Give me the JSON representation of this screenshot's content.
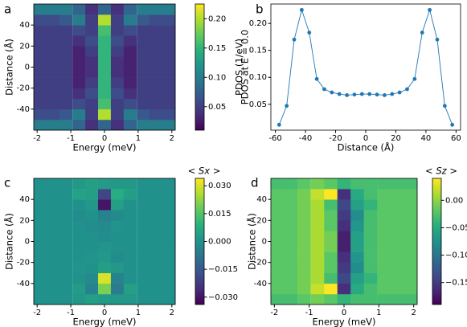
{
  "chart_data": [
    {
      "type": "heatmap",
      "panel": "a",
      "xlabel": "Energy (meV)",
      "ylabel": "Distance (Å)",
      "x": [
        -1.91,
        -1.53,
        -1.15,
        -0.76,
        -0.38,
        0,
        0.38,
        0.76,
        1.15,
        1.53,
        1.91
      ],
      "y": [
        -55,
        -45,
        -35,
        -25,
        -15,
        -5,
        5,
        15,
        25,
        35,
        45,
        55
      ],
      "z": [
        [
          0.1,
          0.1,
          0.1,
          0.08,
          0.04,
          0.08,
          0.04,
          0.08,
          0.1,
          0.1,
          0.1
        ],
        [
          0.06,
          0.06,
          0.07,
          0.1,
          0.05,
          0.2,
          0.05,
          0.1,
          0.07,
          0.06,
          0.06
        ],
        [
          0.05,
          0.05,
          0.05,
          0.06,
          0.05,
          0.16,
          0.05,
          0.06,
          0.05,
          0.05,
          0.05
        ],
        [
          0.05,
          0.05,
          0.05,
          0.04,
          0.06,
          0.15,
          0.06,
          0.04,
          0.05,
          0.05,
          0.05
        ],
        [
          0.05,
          0.05,
          0.05,
          0.03,
          0.05,
          0.15,
          0.05,
          0.03,
          0.05,
          0.05,
          0.05
        ],
        [
          0.05,
          0.05,
          0.05,
          0.03,
          0.04,
          0.15,
          0.04,
          0.03,
          0.05,
          0.05,
          0.05
        ],
        [
          0.05,
          0.05,
          0.05,
          0.03,
          0.04,
          0.15,
          0.04,
          0.03,
          0.05,
          0.05,
          0.05
        ],
        [
          0.05,
          0.05,
          0.05,
          0.03,
          0.05,
          0.15,
          0.05,
          0.03,
          0.05,
          0.05,
          0.05
        ],
        [
          0.05,
          0.05,
          0.05,
          0.04,
          0.06,
          0.15,
          0.06,
          0.04,
          0.05,
          0.05,
          0.05
        ],
        [
          0.05,
          0.05,
          0.05,
          0.06,
          0.05,
          0.16,
          0.05,
          0.06,
          0.05,
          0.05,
          0.05
        ],
        [
          0.06,
          0.06,
          0.07,
          0.1,
          0.05,
          0.2,
          0.05,
          0.1,
          0.07,
          0.06,
          0.06
        ],
        [
          0.1,
          0.1,
          0.1,
          0.08,
          0.04,
          0.08,
          0.04,
          0.08,
          0.1,
          0.1,
          0.1
        ]
      ],
      "xlim": [
        -2.1,
        2.1
      ],
      "ylim": [
        -60,
        60
      ],
      "xticks": [
        -2,
        -1,
        0,
        1,
        2
      ],
      "yticks": [
        -40,
        -20,
        0,
        20,
        40
      ],
      "colorbar": {
        "label": "PDOS (1/eV)",
        "lim": [
          0.01,
          0.225
        ],
        "ticks": [
          0.05,
          {
            "value": 0.1,
            "label": "0.10"
          },
          0.15,
          {
            "value": 0.2,
            "label": "0.20"
          }
        ]
      }
    },
    {
      "type": "line",
      "panel": "b",
      "xlabel": "Distance (Å)",
      "ylabel": "PDOS at E = 0.0",
      "color": "#1f77b4",
      "x": [
        -57.5,
        -52.5,
        -47.5,
        -42.5,
        -37.5,
        -32.5,
        -27.5,
        -22.5,
        -17.5,
        -12.5,
        -7.5,
        -2.5,
        2.5,
        7.5,
        12.5,
        17.5,
        22.5,
        27.5,
        32.5,
        37.5,
        42.5,
        47.5,
        52.5,
        57.5
      ],
      "values": [
        0.012,
        0.047,
        0.17,
        0.225,
        0.183,
        0.097,
        0.078,
        0.072,
        0.069,
        0.067,
        0.068,
        0.069,
        0.069,
        0.068,
        0.067,
        0.069,
        0.072,
        0.078,
        0.097,
        0.183,
        0.225,
        0.17,
        0.047,
        0.012
      ],
      "xlim": [
        -63,
        63
      ],
      "ylim": [
        0.002,
        0.236
      ],
      "xticks": [
        -60,
        -40,
        -20,
        0,
        20,
        40,
        60
      ],
      "yticks": [
        0.05,
        {
          "value": 0.1,
          "label": "0.10"
        },
        0.15,
        {
          "value": 0.2,
          "label": "0.20"
        }
      ]
    },
    {
      "type": "heatmap",
      "panel": "c",
      "xlabel": "Energy (meV)",
      "ylabel": "Distance (Å)",
      "x": [
        -1.91,
        -1.53,
        -1.15,
        -0.76,
        -0.38,
        0,
        0.38,
        0.76,
        1.15,
        1.53,
        1.91
      ],
      "y": [
        -55,
        -45,
        -35,
        -25,
        -15,
        -5,
        5,
        15,
        25,
        35,
        45,
        55
      ],
      "z": [
        [
          0,
          0,
          0,
          0.002,
          0.004,
          0.003,
          0.002,
          0.002,
          0,
          0,
          0
        ],
        [
          0,
          0,
          0,
          0.003,
          -0.004,
          0.02,
          -0.006,
          0.004,
          0,
          0,
          0
        ],
        [
          0,
          0,
          0,
          0,
          -0.002,
          0.03,
          -0.004,
          0,
          0,
          0,
          0
        ],
        [
          0,
          0,
          0,
          0.001,
          0,
          0.004,
          0.002,
          0,
          0,
          0,
          0
        ],
        [
          0,
          0,
          0,
          0,
          0.001,
          0.002,
          -0.001,
          0,
          0,
          0,
          0
        ],
        [
          0,
          0,
          0,
          0,
          0,
          0.001,
          0,
          0,
          0,
          0,
          0
        ],
        [
          0,
          0,
          0,
          0,
          0,
          -0.001,
          0,
          0,
          0,
          0,
          0
        ],
        [
          0,
          0,
          0,
          0,
          -0.001,
          -0.002,
          0.001,
          0,
          0,
          0,
          0
        ],
        [
          0,
          0,
          0,
          -0.001,
          0,
          -0.004,
          -0.002,
          0,
          0,
          0,
          0
        ],
        [
          0,
          0,
          0,
          0,
          0.002,
          -0.03,
          0.004,
          0,
          0,
          0,
          0
        ],
        [
          0,
          0,
          0,
          0.005,
          0.004,
          -0.02,
          0.008,
          0.004,
          0,
          0,
          0
        ],
        [
          0,
          0,
          0,
          0.002,
          0.004,
          0.003,
          0.002,
          0.002,
          0,
          0,
          0
        ]
      ],
      "xlim": [
        -2.1,
        2.1
      ],
      "ylim": [
        -60,
        60
      ],
      "xticks": [
        -2,
        -1,
        0,
        1,
        2
      ],
      "yticks": [
        -40,
        -20,
        0,
        20,
        40
      ],
      "colorbar": {
        "label": "< Sx >",
        "lim": [
          -0.034,
          0.034
        ],
        "ticks": [
          {
            "value": -0.03,
            "label": "−0.030"
          },
          {
            "value": -0.015,
            "label": "−0.015"
          },
          {
            "value": 0,
            "label": "0.000"
          },
          {
            "value": 0.015,
            "label": "0.015"
          },
          {
            "value": 0.03,
            "label": "0.030"
          }
        ]
      }
    },
    {
      "type": "heatmap",
      "panel": "d",
      "xlabel": "Energy (meV)",
      "ylabel": "Distance (Å)",
      "x": [
        -1.91,
        -1.53,
        -1.15,
        -0.76,
        -0.38,
        0,
        0.38,
        0.76,
        1.15,
        1.53,
        1.91
      ],
      "y": [
        -55,
        -45,
        -35,
        -25,
        -15,
        -5,
        5,
        15,
        25,
        35,
        45,
        55
      ],
      "z": [
        [
          -0.03,
          -0.03,
          -0.02,
          -0.01,
          -0.02,
          -0.04,
          -0.03,
          -0.03,
          -0.03,
          -0.03,
          -0.03
        ],
        [
          -0.02,
          -0.02,
          -0.01,
          0.02,
          0.04,
          -0.16,
          -0.05,
          -0.03,
          -0.02,
          -0.02,
          -0.02
        ],
        [
          -0.02,
          -0.02,
          -0.01,
          0.01,
          -0.03,
          -0.14,
          -0.06,
          -0.04,
          -0.02,
          -0.02,
          -0.02
        ],
        [
          -0.02,
          -0.02,
          -0.01,
          0.01,
          -0.02,
          -0.15,
          -0.08,
          -0.03,
          -0.02,
          -0.02,
          -0.02
        ],
        [
          -0.02,
          -0.02,
          -0.01,
          0.01,
          -0.02,
          -0.16,
          -0.07,
          -0.03,
          -0.02,
          -0.02,
          -0.02
        ],
        [
          -0.02,
          -0.02,
          -0.01,
          0.01,
          -0.01,
          -0.17,
          -0.06,
          -0.03,
          -0.02,
          -0.02,
          -0.02
        ],
        [
          -0.02,
          -0.02,
          -0.01,
          0.01,
          -0.01,
          -0.17,
          -0.06,
          -0.03,
          -0.02,
          -0.02,
          -0.02
        ],
        [
          -0.02,
          -0.02,
          -0.01,
          0.01,
          -0.02,
          -0.16,
          -0.07,
          -0.03,
          -0.02,
          -0.02,
          -0.02
        ],
        [
          -0.02,
          -0.02,
          -0.01,
          0.01,
          -0.02,
          -0.15,
          -0.08,
          -0.03,
          -0.02,
          -0.02,
          -0.02
        ],
        [
          -0.02,
          -0.02,
          -0.01,
          0.01,
          -0.03,
          -0.14,
          -0.06,
          -0.04,
          -0.02,
          -0.02,
          -0.02
        ],
        [
          -0.02,
          -0.02,
          -0.01,
          0.02,
          0.04,
          -0.16,
          -0.05,
          -0.03,
          -0.02,
          -0.02,
          -0.02
        ],
        [
          -0.03,
          -0.03,
          -0.02,
          -0.01,
          -0.02,
          -0.04,
          -0.03,
          -0.03,
          -0.03,
          -0.03,
          -0.03
        ]
      ],
      "xlim": [
        -2.1,
        2.1
      ],
      "ylim": [
        -60,
        60
      ],
      "xticks": [
        -2,
        -1,
        0,
        1,
        2
      ],
      "yticks": [
        -40,
        -20,
        0,
        20,
        40
      ],
      "colorbar": {
        "label": "< Sz >",
        "lim": [
          -0.19,
          0.04
        ],
        "ticks": [
          {
            "value": 0,
            "label": "0.00"
          },
          {
            "value": -0.05,
            "label": "−0.05"
          },
          {
            "value": -0.1,
            "label": "−0.10"
          },
          {
            "value": -0.15,
            "label": "−0.15"
          }
        ]
      }
    }
  ]
}
